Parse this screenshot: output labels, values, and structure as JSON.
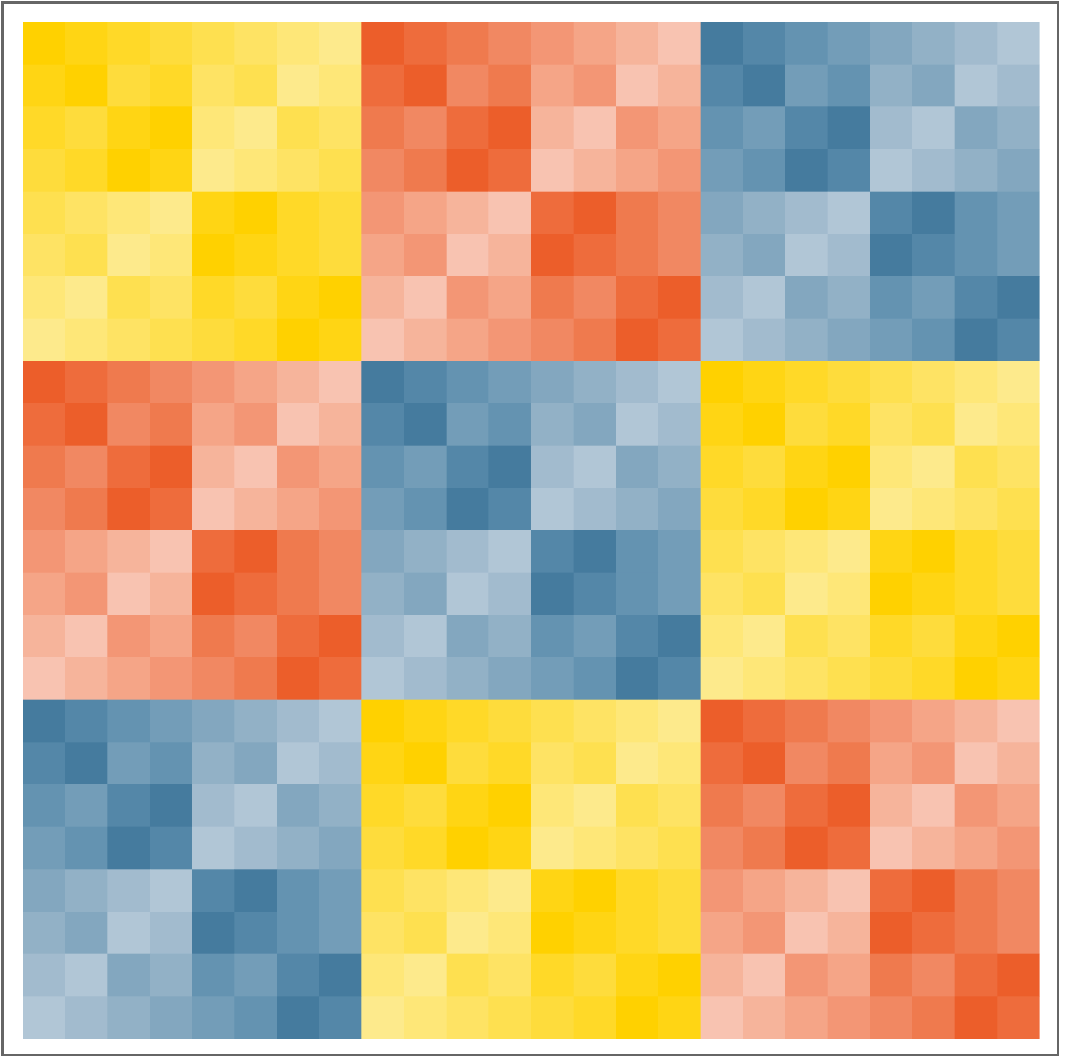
{
  "chart_data": {
    "type": "heatmap",
    "title": "",
    "xlabel": "",
    "ylabel": "",
    "rows": 24,
    "cols": 24,
    "grid": false,
    "legend": "none",
    "block_size": 8,
    "block_palettes": {
      "yellow": [
        "#FFD100",
        "#FFD823",
        "#FEDE46",
        "#FEE469",
        "#FDEA8C"
      ],
      "orange": [
        "#EC5E2A",
        "#EF7749",
        "#F28F6C",
        "#F5A98B",
        "#F8C3B1"
      ],
      "blue": [
        "#457B9E",
        "#6090AF",
        "#7BA2BC",
        "#96B3C8",
        "#B1C6D6"
      ]
    },
    "block_pattern": [
      [
        "yellow",
        "orange",
        "blue"
      ],
      [
        "orange",
        "blue",
        "yellow"
      ],
      [
        "blue",
        "yellow",
        "orange"
      ]
    ],
    "block_intensity": [
      [
        0,
        1,
        2,
        3,
        4,
        5,
        6,
        7
      ],
      [
        1,
        0,
        3,
        2,
        5,
        4,
        7,
        6
      ],
      [
        2,
        3,
        1,
        0,
        6,
        7,
        4,
        5
      ],
      [
        3,
        2,
        0,
        1,
        7,
        6,
        5,
        4
      ],
      [
        4,
        5,
        6,
        7,
        1,
        0,
        2,
        3
      ],
      [
        5,
        4,
        7,
        6,
        0,
        1,
        2,
        3
      ],
      [
        6,
        7,
        4,
        5,
        2,
        3,
        1,
        0
      ],
      [
        7,
        6,
        5,
        4,
        3,
        2,
        0,
        1
      ]
    ]
  }
}
